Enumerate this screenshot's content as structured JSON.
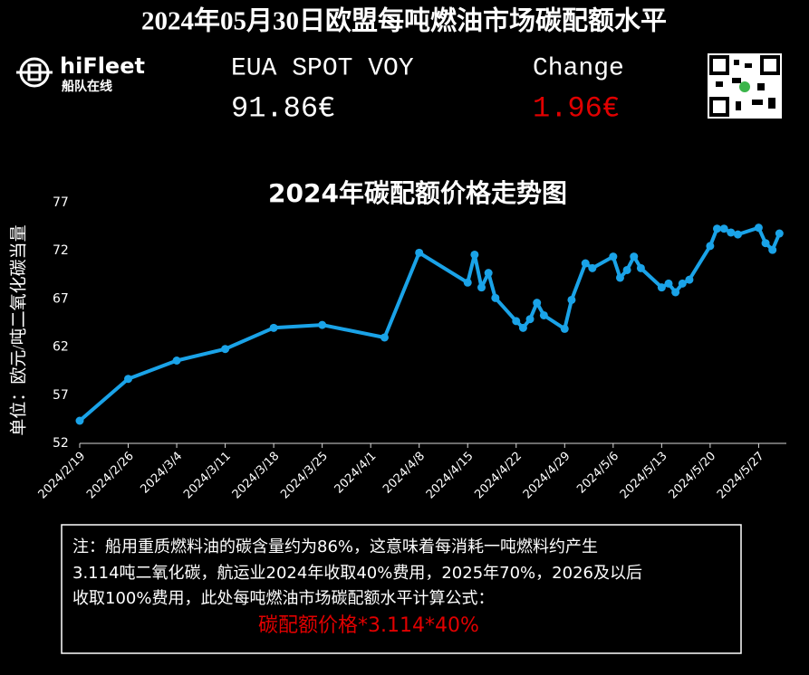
{
  "header": {
    "title": "2024年05月30日欧盟每吨燃油市场碳配额水平",
    "logo": "hiFleet",
    "logo_sub": "船队在线",
    "eua_label": "EUA SPOT VOY",
    "eua_value": "91.86€",
    "change_label": "Change",
    "change_value": "1.96€"
  },
  "chart_data": {
    "type": "line",
    "title": "2024年碳配额价格走势图",
    "ylabel": "单位：欧元/吨二氧化碳当量",
    "x": [
      "2024/2/19",
      "2024/2/26",
      "2024/3/4",
      "2024/3/11",
      "2024/3/18",
      "2024/3/25",
      "2024/4/3",
      "2024/4/8",
      "2024/4/15",
      "2024/4/16",
      "2024/4/17",
      "2024/4/18",
      "2024/4/19",
      "2024/4/22",
      "2024/4/23",
      "2024/4/24",
      "2024/4/25",
      "2024/4/26",
      "2024/4/29",
      "2024/4/30",
      "2024/5/2",
      "2024/5/3",
      "2024/5/6",
      "2024/5/7",
      "2024/5/8",
      "2024/5/9",
      "2024/5/10",
      "2024/5/13",
      "2024/5/14",
      "2024/5/15",
      "2024/5/16",
      "2024/5/17",
      "2024/5/20",
      "2024/5/21",
      "2024/5/22",
      "2024/5/23",
      "2024/5/24",
      "2024/5/27",
      "2024/5/28",
      "2024/5/29",
      "2024/5/30"
    ],
    "values": [
      54.35,
      58.7,
      60.6,
      61.8,
      64.0,
      64.3,
      63.0,
      71.8,
      68.7,
      71.6,
      68.2,
      69.7,
      67.1,
      64.7,
      64.0,
      64.9,
      66.6,
      65.3,
      63.9,
      66.9,
      70.7,
      70.2,
      71.4,
      69.2,
      70.0,
      71.4,
      70.2,
      68.2,
      68.6,
      67.7,
      68.6,
      69.0,
      72.5,
      74.3,
      74.3,
      73.9,
      73.7,
      74.4,
      72.8,
      72.1,
      73.8
    ],
    "color": "#1aa3e8",
    "xlim": [
      "2024/2/19",
      "2024/5/31"
    ],
    "xticks": [
      "2024/2/19",
      "2024/2/26",
      "2024/3/4",
      "2024/3/11",
      "2024/3/18",
      "2024/3/25",
      "2024/4/1",
      "2024/4/8",
      "2024/4/15",
      "2024/4/22",
      "2024/4/29",
      "2024/5/6",
      "2024/5/13",
      "2024/5/20",
      "2024/5/27"
    ],
    "ylim": [
      52,
      77
    ],
    "yticks": [
      52,
      57,
      62,
      67,
      72,
      77
    ],
    "grid": false
  },
  "note": {
    "lines": [
      "注：船用重质燃料油的碳含量约为86%，这意味着每消耗一吨燃料约产生",
      "3.114吨二氧化碳，航运业2024年收取40%费用，2025年70%，2026及以后",
      "收取100%费用，此处每吨燃油市场碳配额水平计算公式："
    ],
    "formula": "碳配额价格*3.114*40%"
  }
}
